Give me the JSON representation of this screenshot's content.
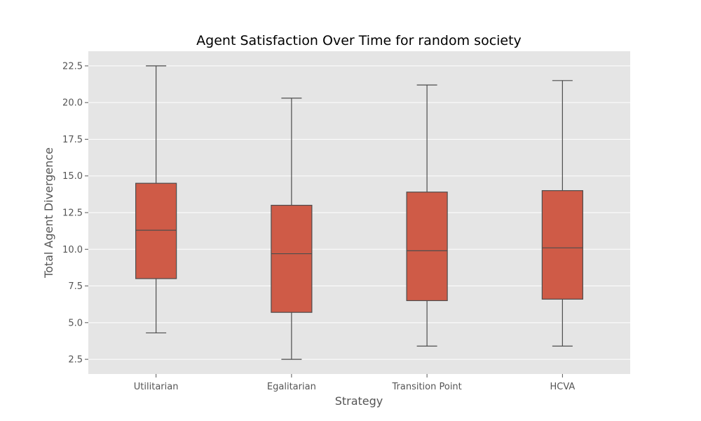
{
  "chart_data": {
    "type": "box",
    "title": "Agent Satisfaction Over Time for random society",
    "xlabel": "Strategy",
    "ylabel": "Total Agent Divergence",
    "ylim": [
      1.5,
      23.5
    ],
    "yticks": [
      "2.5",
      "5.0",
      "7.5",
      "10.0",
      "12.5",
      "15.0",
      "17.5",
      "20.0",
      "22.5"
    ],
    "grid": true,
    "categories": [
      "Utilitarian",
      "Egalitarian",
      "Transition Point",
      "HCVA"
    ],
    "boxes": [
      {
        "category": "Utilitarian",
        "whisker_low": 4.3,
        "q1": 8.0,
        "median": 11.3,
        "q3": 14.5,
        "whisker_high": 22.5
      },
      {
        "category": "Egalitarian",
        "whisker_low": 2.5,
        "q1": 5.7,
        "median": 9.7,
        "q3": 13.0,
        "whisker_high": 20.3
      },
      {
        "category": "Transition Point",
        "whisker_low": 3.4,
        "q1": 6.5,
        "median": 9.9,
        "q3": 13.9,
        "whisker_high": 21.2
      },
      {
        "category": "HCVA",
        "whisker_low": 3.4,
        "q1": 6.6,
        "median": 10.1,
        "q3": 14.0,
        "whisker_high": 21.5
      }
    ],
    "colors": {
      "box_fill": "#cf5b47",
      "line": "#4d4d4d",
      "plot_bg": "#e5e5e5",
      "grid": "#ffffff",
      "text": "#555555"
    }
  }
}
